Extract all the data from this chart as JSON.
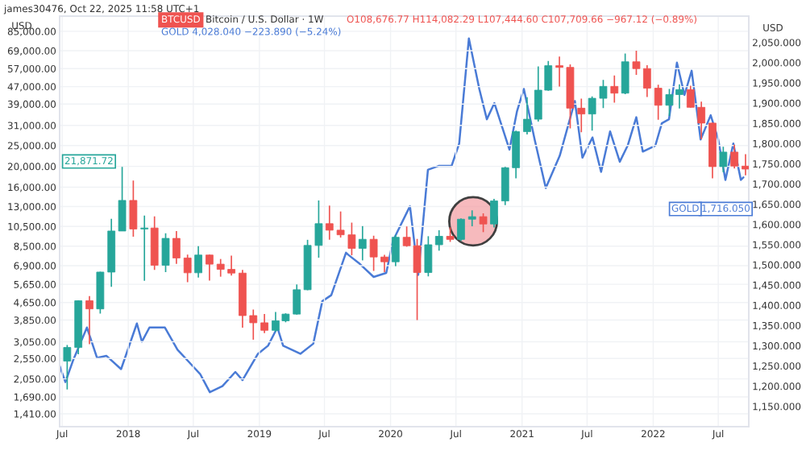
{
  "chart_data": {
    "type": "candlestick",
    "ylabel": "USD",
    "y2label": "USD",
    "annotations": [
      "james30476, Oct 22, 2025 11:58 UTC+1",
      "BTCUSD",
      "Bitcoin / U.S. Dollar · 1W",
      "O108,676.77 H114,082.29 L107,444.60 C107,709.66 −967.12 (−0.89%)",
      "GOLD 4,028.040 −223.890 (−5.24%)",
      "21,871.72",
      "1,716.050",
      "GOLD"
    ],
    "x": [
      "2017-07-15",
      "2017-08-15",
      "2017-09-15",
      "2017-10-15",
      "2017-11-15",
      "2017-12-15",
      "2018-01-15",
      "2018-02-15",
      "2018-03-15",
      "2018-04-15",
      "2018-05-15",
      "2018-06-15",
      "2018-07-15",
      "2018-08-15",
      "2018-09-15",
      "2018-10-15",
      "2018-11-15",
      "2018-12-15",
      "2019-01-15",
      "2019-02-15",
      "2019-03-15",
      "2019-04-15",
      "2019-05-15",
      "2019-06-15",
      "2019-07-15",
      "2019-08-15",
      "2019-09-15",
      "2019-10-15",
      "2019-11-15",
      "2019-12-15",
      "2020-01-15",
      "2020-02-15",
      "2020-03-15",
      "2020-04-15",
      "2020-05-15",
      "2020-06-15",
      "2020-07-15",
      "2020-08-15",
      "2020-09-15",
      "2020-10-15",
      "2020-11-15",
      "2020-12-15",
      "2021-01-15",
      "2021-02-15",
      "2021-03-15",
      "2021-04-15",
      "2021-05-15",
      "2021-06-15",
      "2021-07-15",
      "2021-08-15",
      "2021-09-15",
      "2021-10-15",
      "2021-11-15",
      "2021-12-15",
      "2022-01-15",
      "2022-02-15",
      "2022-03-15",
      "2022-04-15",
      "2022-05-15",
      "2022-06-15",
      "2022-07-15",
      "2022-08-15",
      "2022-09-15"
    ],
    "ohlc": [
      [
        2480,
        2950,
        1830,
        2870
      ],
      [
        2870,
        4750,
        2670,
        4735
      ],
      [
        4735,
        4980,
        2975,
        4340
      ],
      [
        4340,
        6470,
        4130,
        6440
      ],
      [
        6440,
        11400,
        5500,
        10000
      ],
      [
        10000,
        19890,
        10000,
        13880
      ],
      [
        13880,
        17170,
        9400,
        10220
      ],
      [
        10220,
        11790,
        5870,
        10330
      ],
      [
        10330,
        11700,
        6590,
        6930
      ],
      [
        6930,
        9770,
        6430,
        9240
      ],
      [
        9240,
        9990,
        7030,
        7490
      ],
      [
        7490,
        7770,
        5780,
        6390
      ],
      [
        6390,
        8500,
        6070,
        7730
      ],
      [
        7730,
        7760,
        5880,
        7010
      ],
      [
        7010,
        7410,
        6130,
        6630
      ],
      [
        6630,
        7680,
        6200,
        6370
      ],
      [
        6370,
        6590,
        3550,
        4040
      ],
      [
        4040,
        4310,
        3120,
        3740
      ],
      [
        3740,
        4110,
        3350,
        3450
      ],
      [
        3450,
        4200,
        3390,
        3820
      ],
      [
        3820,
        4140,
        3760,
        4105
      ],
      [
        4105,
        5640,
        4080,
        5330
      ],
      [
        5330,
        9100,
        5300,
        8570
      ],
      [
        8570,
        13880,
        7510,
        10820
      ],
      [
        10820,
        13130,
        9110,
        10090
      ],
      [
        10090,
        12330,
        9320,
        9600
      ],
      [
        9600,
        10940,
        7710,
        8300
      ],
      [
        8300,
        10540,
        7300,
        9150
      ],
      [
        9150,
        9510,
        6520,
        7570
      ],
      [
        7570,
        7750,
        6430,
        7190
      ],
      [
        7190,
        9600,
        6860,
        9350
      ],
      [
        9350,
        10500,
        8450,
        8540
      ],
      [
        8540,
        9190,
        3850,
        6410
      ],
      [
        6410,
        9460,
        6150,
        8630
      ],
      [
        8630,
        10080,
        8100,
        9450
      ],
      [
        9450,
        10400,
        8900,
        9140
      ],
      [
        9140,
        11450,
        8990,
        11350
      ],
      [
        11350,
        12480,
        10520,
        11660
      ],
      [
        11660,
        12090,
        9880,
        10780
      ],
      [
        10780,
        14100,
        10380,
        13800
      ],
      [
        13800,
        19900,
        13200,
        19700
      ],
      [
        19700,
        29300,
        17600,
        28990
      ],
      [
        28990,
        41950,
        28130,
        33140
      ],
      [
        33140,
        58350,
        32300,
        45240
      ],
      [
        45240,
        61790,
        44960,
        58800
      ],
      [
        58800,
        64900,
        47000,
        57750
      ],
      [
        57750,
        59600,
        30000,
        37300
      ],
      [
        37300,
        41300,
        28800,
        35040
      ],
      [
        35040,
        42320,
        29300,
        41460
      ],
      [
        41460,
        50500,
        37330,
        47100
      ],
      [
        47100,
        52920,
        39600,
        43820
      ],
      [
        43820,
        67000,
        43300,
        61320
      ],
      [
        61320,
        69000,
        53260,
        57000
      ],
      [
        57000,
        59100,
        42000,
        46200
      ],
      [
        46200,
        47990,
        32950,
        38480
      ],
      [
        38480,
        45800,
        34320,
        43160
      ],
      [
        43160,
        48200,
        37160,
        45510
      ],
      [
        45510,
        47440,
        37500,
        37640
      ],
      [
        37640,
        40000,
        26700,
        31790
      ],
      [
        31790,
        31950,
        17600,
        19940
      ],
      [
        19940,
        24670,
        18780,
        23300
      ],
      [
        23300,
        25200,
        19540,
        20050
      ],
      [
        20050,
        22800,
        18150,
        19420
      ]
    ],
    "colors": [
      "#26a69a",
      "#26a69a",
      "#ef5350",
      "#26a69a",
      "#26a69a",
      "#26a69a",
      "#ef5350",
      "#26a69a",
      "#ef5350",
      "#26a69a",
      "#ef5350",
      "#ef5350",
      "#26a69a",
      "#ef5350",
      "#ef5350",
      "#ef5350",
      "#ef5350",
      "#ef5350",
      "#ef5350",
      "#26a69a",
      "#26a69a",
      "#26a69a",
      "#26a69a",
      "#26a69a",
      "#ef5350",
      "#ef5350",
      "#ef5350",
      "#26a69a",
      "#ef5350",
      "#ef5350",
      "#26a69a",
      "#ef5350",
      "#ef5350",
      "#26a69a",
      "#26a69a",
      "#ef5350",
      "#26a69a",
      "#26a69a",
      "#ef5350",
      "#26a69a",
      "#26a69a",
      "#26a69a",
      "#26a69a",
      "#26a69a",
      "#26a69a",
      "#ef5350",
      "#ef5350",
      "#ef5350",
      "#26a69a",
      "#26a69a",
      "#ef5350",
      "#26a69a",
      "#ef5350",
      "#ef5350",
      "#ef5350",
      "#26a69a",
      "#26a69a",
      "#ef5350",
      "#ef5350",
      "#ef5350",
      "#26a69a",
      "#ef5350",
      "#ef5350"
    ],
    "series": [
      {
        "type": "line",
        "axis": "y2",
        "color": "#4a7bd6",
        "x": [
          "2017-06-24",
          "2017-07-10",
          "2017-08-01",
          "2017-09-08",
          "2017-10-06",
          "2017-11-01",
          "2017-12-12",
          "2018-01-25",
          "2018-02-08",
          "2018-03-01",
          "2018-04-13",
          "2018-05-18",
          "2018-06-29",
          "2018-07-20",
          "2018-08-16",
          "2018-09-20",
          "2018-10-26",
          "2018-11-15",
          "2018-12-28",
          "2019-01-25",
          "2019-02-20",
          "2019-03-08",
          "2019-04-25",
          "2019-05-31",
          "2019-06-25",
          "2019-07-20",
          "2019-08-30",
          "2019-09-05",
          "2019-10-04",
          "2019-11-15",
          "2019-12-20",
          "2020-01-08",
          "2020-02-24",
          "2020-03-18",
          "2020-04-14",
          "2020-05-15",
          "2020-06-19",
          "2020-07-10",
          "2020-08-06",
          "2020-09-04",
          "2020-09-25",
          "2020-10-16",
          "2020-11-27",
          "2020-12-18",
          "2021-01-06",
          "2021-02-05",
          "2021-03-08",
          "2021-04-16",
          "2021-05-28",
          "2021-06-18",
          "2021-07-16",
          "2021-08-09",
          "2021-09-03",
          "2021-09-30",
          "2021-10-22",
          "2021-11-15",
          "2021-12-03",
          "2022-01-07",
          "2022-01-25",
          "2022-02-14",
          "2022-03-08",
          "2022-03-29",
          "2022-04-18",
          "2022-05-13",
          "2022-06-10",
          "2022-07-01",
          "2022-07-21",
          "2022-08-12",
          "2022-09-02",
          "2022-09-09"
        ],
        "values": [
          1250,
          1210,
          1265,
          1345,
          1270,
          1275,
          1242,
          1355,
          1310,
          1345,
          1345,
          1290,
          1250,
          1230,
          1185,
          1200,
          1235,
          1215,
          1280,
          1300,
          1345,
          1300,
          1280,
          1305,
          1410,
          1425,
          1530,
          1525,
          1505,
          1470,
          1480,
          1560,
          1645,
          1475,
          1735,
          1745,
          1745,
          1800,
          2060,
          1935,
          1860,
          1900,
          1785,
          1880,
          1935,
          1810,
          1690,
          1770,
          1905,
          1765,
          1815,
          1730,
          1830,
          1755,
          1795,
          1865,
          1780,
          1795,
          1850,
          1860,
          2000,
          1920,
          1980,
          1810,
          1870,
          1810,
          1710,
          1800,
          1710,
          1716
        ]
      }
    ],
    "log": "y",
    "grid": true,
    "xlim": [
      "2017-06-24",
      "2022-09-24"
    ],
    "xticks": [
      {
        "value": "2017-07-01",
        "label": "Jul"
      },
      {
        "value": "2018-01-01",
        "label": "2018"
      },
      {
        "value": "2018-07-01",
        "label": "Jul"
      },
      {
        "value": "2019-01-01",
        "label": "2019"
      },
      {
        "value": "2019-07-01",
        "label": "Jul"
      },
      {
        "value": "2020-01-01",
        "label": "2020"
      },
      {
        "value": "2020-07-01",
        "label": "Jul"
      },
      {
        "value": "2021-01-01",
        "label": "2021"
      },
      {
        "value": "2021-07-01",
        "label": "Jul"
      },
      {
        "value": "2022-01-01",
        "label": "2022"
      },
      {
        "value": "2022-07-01",
        "label": "Jul"
      }
    ],
    "ylim": [
      1230,
      100000
    ],
    "yticks": [
      {
        "value": 1410,
        "label": "1,410.00"
      },
      {
        "value": 1690,
        "label": "1,690.00"
      },
      {
        "value": 2050,
        "label": "2,050.00"
      },
      {
        "value": 2550,
        "label": "2,550.00"
      },
      {
        "value": 3050,
        "label": "3,050.00"
      },
      {
        "value": 3850,
        "label": "3,850.00"
      },
      {
        "value": 4650,
        "label": "4,650.00"
      },
      {
        "value": 5650,
        "label": "5,650.00"
      },
      {
        "value": 6900,
        "label": "6,900.00"
      },
      {
        "value": 8500,
        "label": "8,500.00"
      },
      {
        "value": 10500,
        "label": "10,500.00"
      },
      {
        "value": 13000,
        "label": "13,000.00"
      },
      {
        "value": 16000,
        "label": "16,000.00"
      },
      {
        "value": 20000,
        "label": "20,000.00"
      },
      {
        "value": 25000,
        "label": "25,000.00"
      },
      {
        "value": 31000,
        "label": "31,000.00"
      },
      {
        "value": 39000,
        "label": "39,000.00"
      },
      {
        "value": 47000,
        "label": "47,000.00"
      },
      {
        "value": 57000,
        "label": "57,000.00"
      },
      {
        "value": 69000,
        "label": "69,000.00"
      },
      {
        "value": 85000,
        "label": "85,000.00"
      }
    ],
    "y2lim": [
      1100,
      2115
    ],
    "y2ticks": [
      {
        "value": 1150,
        "label": "1,150.000"
      },
      {
        "value": 1200,
        "label": "1,200.000"
      },
      {
        "value": 1250,
        "label": "1,250.000"
      },
      {
        "value": 1300,
        "label": "1,300.000"
      },
      {
        "value": 1350,
        "label": "1,350.000"
      },
      {
        "value": 1400,
        "label": "1,400.000"
      },
      {
        "value": 1450,
        "label": "1,450.000"
      },
      {
        "value": 1500,
        "label": "1,500.000"
      },
      {
        "value": 1550,
        "label": "1,550.000"
      },
      {
        "value": 1600,
        "label": "1,600.000"
      },
      {
        "value": 1650,
        "label": "1,650.000"
      },
      {
        "value": 1700,
        "label": "1,700.000"
      },
      {
        "value": 1750,
        "label": "1,750.000"
      },
      {
        "value": 1800,
        "label": "1,800.000"
      },
      {
        "value": 1850,
        "label": "1,850.000"
      },
      {
        "value": 1900,
        "label": "1,900.000"
      },
      {
        "value": 1950,
        "label": "1,950.000"
      },
      {
        "value": 2000,
        "label": "2,000.000"
      },
      {
        "value": 2050,
        "label": "2,050.000"
      }
    ]
  }
}
